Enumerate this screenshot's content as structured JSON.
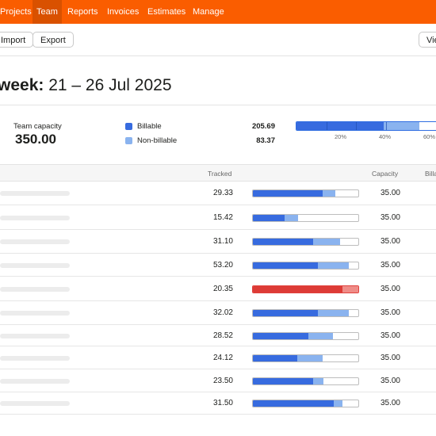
{
  "nav": {
    "items": [
      {
        "label": "Projects",
        "active": false
      },
      {
        "label": "Team",
        "active": true
      },
      {
        "label": "Reports",
        "active": false
      },
      {
        "label": "Invoices",
        "active": false
      },
      {
        "label": "Estimates",
        "active": false
      },
      {
        "label": "Manage",
        "active": false
      }
    ],
    "color": "#fa5d00"
  },
  "toolbar": {
    "import_label": "Import",
    "export_label": "Export",
    "view_label": "Vie"
  },
  "heading": {
    "prefix": "week:",
    "range": "21 – 26 Jul 2025"
  },
  "summary": {
    "capacity_label": "Team capacity",
    "capacity_value": "350.00",
    "billable_label": "Billable",
    "billable_value": "205.69",
    "nonbillable_label": "Non-billable",
    "nonbillable_value": "83.37",
    "billable_fraction": 0.5877,
    "nonbillable_fraction": 0.2382,
    "axis_ticks": [
      "20%",
      "40%",
      "60%"
    ]
  },
  "colors": {
    "billable": "#376bdf",
    "nonbillable": "#8ab3ef",
    "over": "#dd3b36",
    "over_light": "#ef8c87"
  },
  "table": {
    "headers": {
      "tracked": "Tracked",
      "capacity": "Capacity",
      "billable": "Billa"
    },
    "rows": [
      {
        "tracked": "29.33",
        "capacity": "35.00",
        "billable_fraction": 0.66,
        "nonbillable_fraction": 0.12,
        "over": false
      },
      {
        "tracked": "15.42",
        "capacity": "35.00",
        "billable_fraction": 0.3,
        "nonbillable_fraction": 0.13,
        "over": false
      },
      {
        "tracked": "31.10",
        "capacity": "35.00",
        "billable_fraction": 0.57,
        "nonbillable_fraction": 0.26,
        "over": false
      },
      {
        "tracked": "53.20",
        "capacity": "35.00",
        "billable_fraction": 0.62,
        "nonbillable_fraction": 0.29,
        "over": false
      },
      {
        "tracked": "20.35",
        "capacity": "35.00",
        "billable_fraction": 0.85,
        "nonbillable_fraction": 0.15,
        "over": true
      },
      {
        "tracked": "32.02",
        "capacity": "35.00",
        "billable_fraction": 0.62,
        "nonbillable_fraction": 0.29,
        "over": false
      },
      {
        "tracked": "28.52",
        "capacity": "35.00",
        "billable_fraction": 0.53,
        "nonbillable_fraction": 0.23,
        "over": false
      },
      {
        "tracked": "24.12",
        "capacity": "35.00",
        "billable_fraction": 0.42,
        "nonbillable_fraction": 0.24,
        "over": false
      },
      {
        "tracked": "23.50",
        "capacity": "35.00",
        "billable_fraction": 0.57,
        "nonbillable_fraction": 0.1,
        "over": false
      },
      {
        "tracked": "31.50",
        "capacity": "35.00",
        "billable_fraction": 0.77,
        "nonbillable_fraction": 0.08,
        "over": false
      }
    ]
  }
}
